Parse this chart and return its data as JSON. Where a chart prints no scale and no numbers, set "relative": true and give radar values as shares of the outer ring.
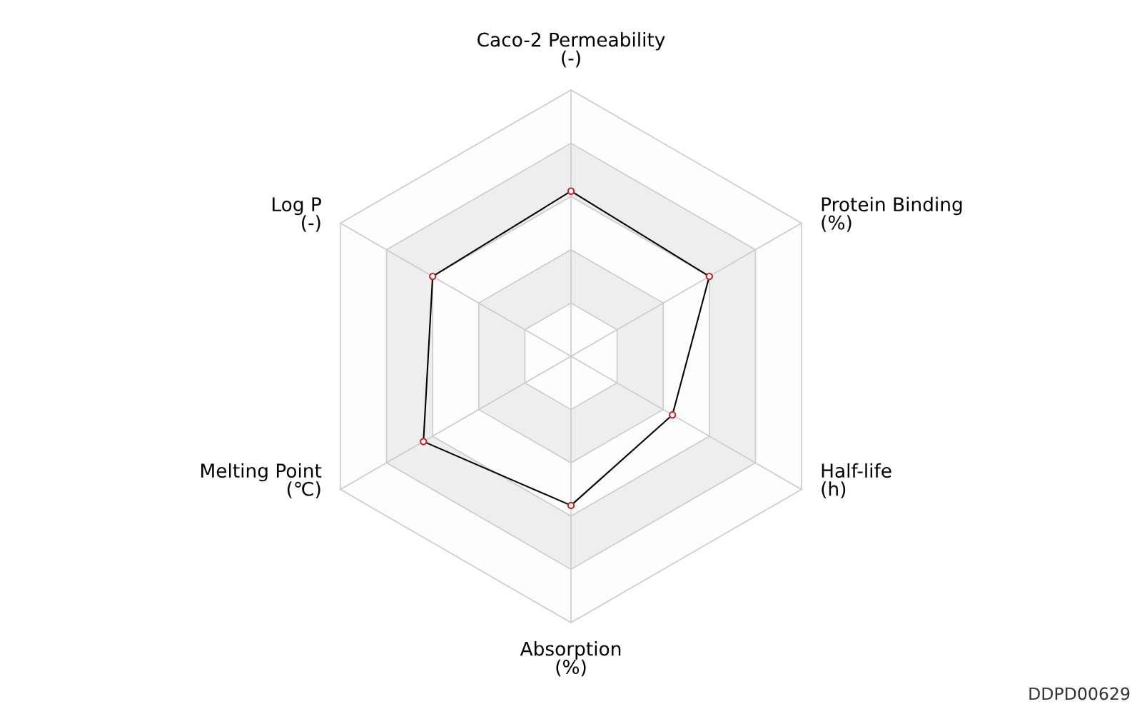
{
  "chart_data": {
    "type": "radar",
    "relative": true,
    "categories": [
      "Caco-2 Permeability\n(-)",
      "Protein Binding\n(%)",
      "Half-life\n(h)",
      "Absorption\n(%)",
      "Melting Point\n(℃)",
      "Log P\n(-)"
    ],
    "series": [
      {
        "color": "#000000",
        "values": [
          0.62,
          0.6,
          0.44,
          0.56,
          0.64,
          0.6
        ]
      }
    ],
    "marker": "circle",
    "grid": true,
    "annotations": [
      "DDPD00629"
    ]
  }
}
